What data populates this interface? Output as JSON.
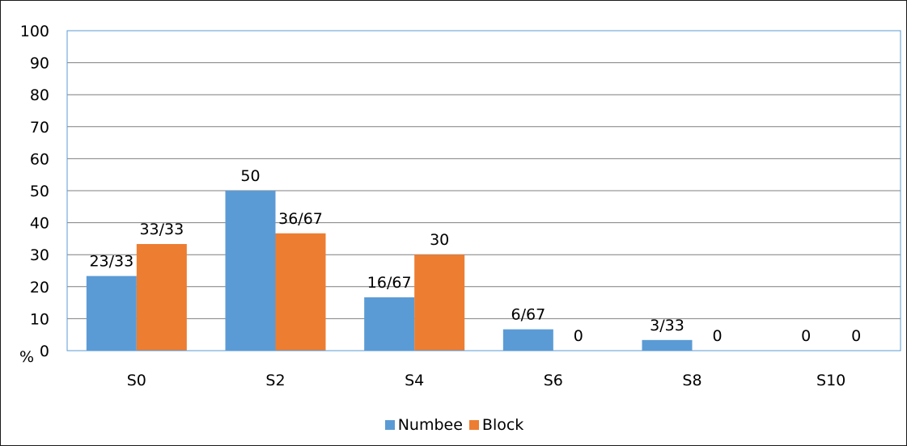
{
  "chart_data": {
    "type": "bar",
    "categories": [
      "S0",
      "S2",
      "S4",
      "S6",
      "S8",
      "S10"
    ],
    "series": [
      {
        "name": "Numbee",
        "color": "#5b9bd5",
        "values": [
          23.33,
          50,
          16.67,
          6.67,
          3.33,
          0
        ],
        "labels": [
          "23/33",
          "50",
          "16/67",
          "6/67",
          "3/33",
          "0"
        ]
      },
      {
        "name": "Block",
        "color": "#ed7d31",
        "values": [
          33.33,
          36.67,
          30,
          0,
          0,
          0
        ],
        "labels": [
          "33/33",
          "36/67",
          "30",
          "0",
          "0",
          "0"
        ]
      }
    ],
    "yticks": [
      "0",
      "10",
      "20",
      "30",
      "40",
      "50",
      "60",
      "70",
      "80",
      "90",
      "100"
    ],
    "ylim": [
      0,
      100
    ],
    "unit_label": "%",
    "grid": true,
    "gridline_color": "#7f7f7f",
    "plot_border_color": "#5b9bd5",
    "legend_position": "bottom"
  }
}
